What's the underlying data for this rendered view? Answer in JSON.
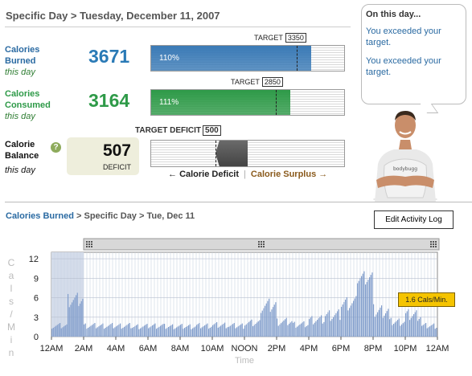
{
  "header": {
    "title": "Specific Day > Tuesday, December 11, 2007"
  },
  "burned": {
    "label_line1": "Calories",
    "label_line2": "Burned",
    "sub": "this day",
    "value": "3671",
    "target_label": "TARGET",
    "target_value": "3350",
    "percent_label": "110%",
    "fill_fraction": 0.83,
    "target_fraction": 0.755,
    "color": "#3a7ab6"
  },
  "consumed": {
    "label_line1": "Calories",
    "label_line2": "Consumed",
    "sub": "this day",
    "value": "3164",
    "target_label": "TARGET",
    "target_value": "2850",
    "percent_label": "111%",
    "fill_fraction": 0.72,
    "target_fraction": 0.645,
    "color": "#2e9a48"
  },
  "balance": {
    "label_line1": "Calorie",
    "label_line2": "Balance",
    "sub": "this day",
    "value": "507",
    "caption": "DEFICIT",
    "target_label": "TARGET DEFICIT",
    "target_value": "500",
    "legend_deficit": "Calorie Deficit",
    "legend_surplus": "Calorie Surplus",
    "help_glyph": "?"
  },
  "bubble": {
    "title": "On this day...",
    "messages": [
      "You exceeded your target.",
      "You exceeded your target."
    ]
  },
  "breadcrumb": {
    "link": "Calories Burned",
    "rest": " > Specific Day > Tue, Dec 11"
  },
  "edit_button": "Edit Activity Log",
  "tooltip": "1.6 Cals/Min.",
  "chart_data": {
    "type": "bar",
    "ylabel": "Cals/Min",
    "xlabel": "Time",
    "ylim": [
      0,
      13
    ],
    "yticks": [
      0,
      3,
      6,
      9,
      12
    ],
    "xticks": [
      "12AM",
      "2AM",
      "4AM",
      "6AM",
      "8AM",
      "10AM",
      "NOON",
      "2PM",
      "4PM",
      "6PM",
      "8PM",
      "10PM",
      "12AM"
    ],
    "hour_values": [
      1.6,
      5.5,
      1.6,
      1.6,
      1.6,
      1.5,
      1.6,
      1.5,
      1.5,
      1.6,
      1.7,
      1.6,
      2.0,
      4.6,
      2.2,
      1.8,
      2.5,
      3.2,
      5.0,
      9.0,
      3.8,
      2.2,
      3.2,
      1.6
    ],
    "selection_hours": [
      0,
      2
    ]
  }
}
